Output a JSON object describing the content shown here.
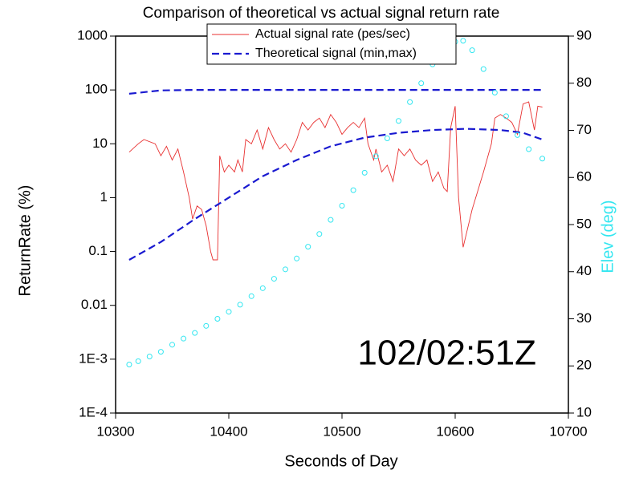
{
  "chart_data": {
    "type": "line",
    "title": "Comparison of theoretical vs actual signal return rate",
    "xlabel": "Seconds of Day",
    "ylabel": "ReturnRate (%)",
    "y2label": "Elev (deg)",
    "annotation": "102/02:51Z",
    "xlim": [
      10300,
      10700
    ],
    "xticks": [
      10300,
      10400,
      10500,
      10600,
      10700
    ],
    "ylim": [
      0.0001,
      1000
    ],
    "ylog": true,
    "yticks": [
      {
        "value": 0.0001,
        "label": "1E-4"
      },
      {
        "value": 0.001,
        "label": "1E-3"
      },
      0.01,
      0.1,
      1,
      10,
      100,
      1000
    ],
    "y2lim": [
      10,
      90
    ],
    "y2ticks": [
      10,
      20,
      30,
      40,
      50,
      60,
      70,
      80,
      90
    ],
    "y2color": "#33e6f0",
    "legend": "top",
    "series": [
      {
        "name": "Actual signal rate (pes/sec)",
        "color": "#e83030",
        "x": [
          10312,
          10320,
          10325,
          10335,
          10340,
          10345,
          10350,
          10355,
          10360,
          10365,
          10368,
          10372,
          10376,
          10380,
          10384,
          10386,
          10390,
          10392,
          10396,
          10400,
          10405,
          10408,
          10412,
          10415,
          10420,
          10425,
          10430,
          10435,
          10440,
          10445,
          10450,
          10455,
          10460,
          10465,
          10470,
          10475,
          10480,
          10485,
          10490,
          10495,
          10500,
          10505,
          10510,
          10515,
          10520,
          10523,
          10528,
          10530,
          10535,
          10540,
          10545,
          10550,
          10555,
          10560,
          10565,
          10570,
          10575,
          10580,
          10585,
          10590,
          10593,
          10596,
          10600,
          10603,
          10607,
          10615,
          10625,
          10632,
          10635,
          10640,
          10645,
          10650,
          10655,
          10660,
          10665,
          10670,
          10673,
          10677
        ],
        "values": [
          7,
          10,
          12,
          10,
          6,
          9,
          5,
          8,
          3,
          1,
          0.4,
          0.7,
          0.6,
          0.3,
          0.1,
          0.07,
          0.07,
          6,
          3,
          4,
          3,
          5,
          3,
          12,
          10,
          18,
          8,
          20,
          12,
          8,
          10,
          7,
          12,
          25,
          18,
          25,
          30,
          20,
          35,
          25,
          15,
          20,
          25,
          20,
          30,
          10,
          5,
          8,
          3,
          4,
          2,
          8,
          6,
          8,
          5,
          4,
          5,
          2,
          3,
          1.5,
          1.3,
          20,
          50,
          1,
          0.12,
          0.6,
          3,
          10,
          30,
          35,
          30,
          25,
          15,
          55,
          60,
          18,
          50,
          48
        ]
      },
      {
        "name": "Theoretical signal (min,max)",
        "color": "#1a1ad0",
        "dashed": true,
        "x": [
          10312,
          10340,
          10370,
          10400,
          10430,
          10460,
          10490,
          10520,
          10550,
          10580,
          10610,
          10640,
          10660,
          10677
        ],
        "values": [
          0.07,
          0.15,
          0.4,
          1,
          2.5,
          5,
          9,
          13,
          16,
          18,
          19,
          18,
          16,
          12
        ],
        "values_max": [
          85,
          98,
          100,
          100,
          100,
          100,
          100,
          100,
          100,
          100,
          100,
          100,
          100,
          100
        ]
      },
      {
        "color": "#33e6f0",
        "axis": "y2",
        "markers": "circle",
        "x": [
          10312,
          10320,
          10330,
          10340,
          10350,
          10360,
          10370,
          10380,
          10390,
          10400,
          10410,
          10420,
          10430,
          10440,
          10450,
          10460,
          10470,
          10480,
          10490,
          10500,
          10510,
          10520,
          10530,
          10540,
          10550,
          10560,
          10570,
          10580,
          10590,
          10600,
          10607,
          10615,
          10625,
          10635,
          10645,
          10655,
          10665,
          10677
        ],
        "values": [
          20.3,
          21,
          22,
          23,
          24.5,
          25.8,
          27,
          28.5,
          30,
          31.5,
          33,
          34.8,
          36.5,
          38.5,
          40.5,
          42.8,
          45.3,
          48,
          51,
          54,
          57.3,
          61,
          64.5,
          68.3,
          72,
          76,
          80,
          84,
          87,
          88.8,
          89,
          87,
          83,
          78,
          73,
          69,
          66,
          64
        ]
      }
    ]
  }
}
